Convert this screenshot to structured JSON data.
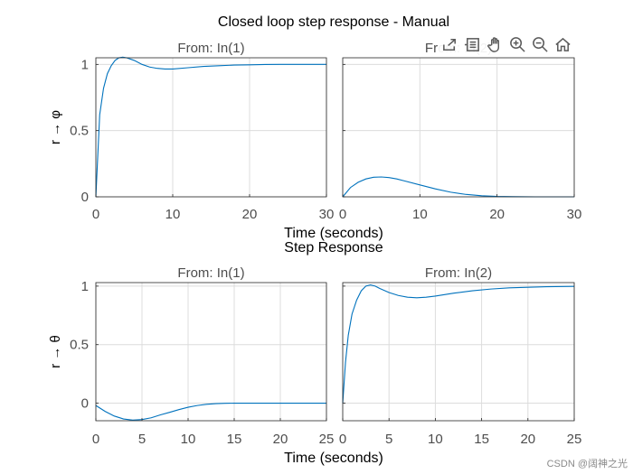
{
  "figure_title": "Closed loop step response - Manual",
  "toolbar": [
    {
      "name": "export-icon"
    },
    {
      "name": "data-tips-icon"
    },
    {
      "name": "pan-icon"
    },
    {
      "name": "zoom-in-icon"
    },
    {
      "name": "zoom-out-icon"
    },
    {
      "name": "home-icon"
    }
  ],
  "watermark": "CSDN @阔神之光",
  "chart_data": [
    {
      "type": "line",
      "title": "Closed loop step response - Manual",
      "column_titles": [
        "From: In(1)",
        "From: In(2)"
      ],
      "xlabel": "Time (seconds)",
      "ylabel": "r → φ",
      "xlim": [
        0,
        30
      ],
      "ylim": [
        0,
        1.05
      ],
      "xticks": [
        0,
        10,
        20,
        30
      ],
      "yticks": [
        0,
        0.5,
        1
      ],
      "ytick_labels": [
        "0",
        "0.5",
        "1"
      ],
      "grid": true,
      "series": [
        {
          "color": "#0072BD",
          "x": [
            0,
            0.5,
            1,
            1.5,
            2,
            2.5,
            3,
            3.5,
            4,
            5,
            6,
            7,
            8,
            9,
            10,
            12,
            14,
            16,
            18,
            20,
            22,
            24,
            26,
            28,
            30
          ],
          "y": [
            0,
            0.62,
            0.82,
            0.93,
            0.99,
            1.03,
            1.05,
            1.055,
            1.05,
            1.03,
            1.0,
            0.98,
            0.97,
            0.965,
            0.965,
            0.975,
            0.985,
            0.99,
            0.995,
            0.997,
            0.999,
            1.0,
            1.0,
            1.0,
            1.0
          ]
        },
        {
          "color": "#0072BD",
          "x": [
            0,
            1,
            2,
            3,
            4,
            5,
            6,
            7,
            8,
            10,
            12,
            14,
            16,
            18,
            20,
            22,
            25,
            28,
            30
          ],
          "y": [
            0,
            0.07,
            0.11,
            0.135,
            0.148,
            0.15,
            0.145,
            0.135,
            0.12,
            0.09,
            0.06,
            0.035,
            0.018,
            0.008,
            0.003,
            0.001,
            0,
            0,
            0
          ]
        }
      ]
    },
    {
      "type": "line",
      "title": "Step Response",
      "column_titles": [
        "From: In(1)",
        "From: In(2)"
      ],
      "xlabel": "Time (seconds)",
      "ylabel": "r → θ",
      "xlim": [
        0,
        25
      ],
      "ylim": [
        -0.15,
        1.03
      ],
      "xticks": [
        0,
        5,
        10,
        15,
        20,
        25
      ],
      "yticks": [
        0,
        0.5,
        1
      ],
      "ytick_labels": [
        "0",
        "0.5",
        "1"
      ],
      "grid": true,
      "series": [
        {
          "color": "#0072BD",
          "x": [
            0,
            1,
            2,
            3,
            4,
            5,
            6,
            7,
            8,
            9,
            10,
            11,
            12,
            13,
            14,
            15,
            17,
            20,
            25
          ],
          "y": [
            -0.02,
            -0.07,
            -0.11,
            -0.135,
            -0.145,
            -0.14,
            -0.125,
            -0.1,
            -0.078,
            -0.055,
            -0.035,
            -0.02,
            -0.01,
            -0.004,
            -0.001,
            0,
            0,
            0,
            0
          ]
        },
        {
          "color": "#0072BD",
          "x": [
            0,
            0.3,
            0.6,
            1,
            1.5,
            2,
            2.5,
            3,
            3.5,
            4,
            5,
            6,
            7,
            8,
            9,
            10,
            12,
            14,
            16,
            18,
            20,
            22,
            25
          ],
          "y": [
            0,
            0.35,
            0.58,
            0.76,
            0.88,
            0.96,
            1.0,
            1.01,
            1.0,
            0.98,
            0.945,
            0.92,
            0.905,
            0.9,
            0.905,
            0.915,
            0.94,
            0.96,
            0.975,
            0.985,
            0.99,
            0.995,
            0.998
          ]
        }
      ]
    }
  ]
}
